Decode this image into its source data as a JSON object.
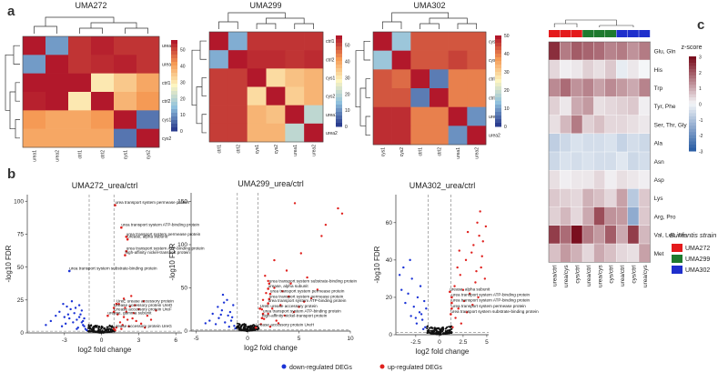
{
  "panel_labels": {
    "a": "a",
    "b": "b",
    "c": "c"
  },
  "colors": {
    "hm_low": "#2b3d8f",
    "hm_mid1": "#8fc0dd",
    "hm_mid2": "#fdf5c0",
    "hm_mid3": "#f59a55",
    "hm_high": "#b2182b",
    "down": "#1b33d6",
    "up": "#e0211e",
    "ns": "#111111",
    "z_low": "#2c5fa5",
    "z_mid": "#f4f6f8",
    "z_high": "#7a0f1f",
    "strain_272": "#e41a1c",
    "strain_299": "#1e7a2e",
    "strain_302": "#1f2fcc"
  },
  "chart_data": [
    {
      "type": "heatmap",
      "title": "UMA272",
      "rows": [
        "urea1",
        "urea2",
        "ctrl1",
        "ctrl2",
        "cys1",
        "cys2"
      ],
      "cols": [
        "urea1",
        "urea2",
        "ctrl1",
        "ctrl2",
        "cys1",
        "cys2"
      ],
      "values": [
        [
          56,
          10,
          53,
          55,
          53,
          53
        ],
        [
          10,
          56,
          53,
          54,
          55,
          53
        ],
        [
          56,
          56,
          56,
          30,
          35,
          40
        ],
        [
          55,
          56,
          30,
          56,
          38,
          42
        ],
        [
          42,
          40,
          40,
          42,
          56,
          6
        ],
        [
          40,
          40,
          40,
          40,
          6,
          56
        ]
      ],
      "colorbar": [
        "50",
        "40",
        "30",
        "20",
        "10",
        "0"
      ],
      "range": [
        0,
        56
      ]
    },
    {
      "type": "heatmap",
      "title": "UMA299",
      "rows": [
        "ctrl1",
        "ctrl2",
        "cys1",
        "cys2",
        "urea1",
        "urea2"
      ],
      "cols": [
        "ctrl1",
        "ctrl2",
        "cys1",
        "cys2",
        "urea1",
        "urea2"
      ],
      "values": [
        [
          56,
          12,
          53,
          53,
          53,
          53
        ],
        [
          12,
          56,
          54,
          54,
          53,
          54
        ],
        [
          52,
          52,
          56,
          32,
          36,
          38
        ],
        [
          52,
          52,
          32,
          56,
          34,
          38
        ],
        [
          52,
          52,
          38,
          36,
          56,
          20
        ],
        [
          52,
          52,
          38,
          38,
          20,
          56
        ]
      ],
      "colorbar": [
        "50",
        "40",
        "30",
        "20",
        "10",
        "0"
      ],
      "range": [
        0,
        56
      ]
    },
    {
      "type": "heatmap",
      "title": "UMA302",
      "rows": [
        "cys1",
        "cys2",
        "ctrl1",
        "ctrl2",
        "urea1",
        "urea2"
      ],
      "cols": [
        "cys1",
        "cys2",
        "ctrl1",
        "ctrl2",
        "urea1",
        "urea2"
      ],
      "values": [
        [
          50,
          14,
          44,
          44,
          44,
          44
        ],
        [
          14,
          50,
          44,
          44,
          46,
          44
        ],
        [
          44,
          42,
          50,
          6,
          40,
          40
        ],
        [
          44,
          44,
          6,
          50,
          40,
          40
        ],
        [
          48,
          48,
          40,
          40,
          50,
          8
        ],
        [
          48,
          48,
          40,
          40,
          8,
          50
        ]
      ],
      "colorbar": [
        "50",
        "40",
        "30",
        "20",
        "10",
        "0"
      ],
      "range": [
        0,
        50
      ]
    },
    {
      "type": "scatter",
      "title": "UMA272_urea/ctrl",
      "xlabel": "log2 fold change",
      "ylabel": "-log10 FDR",
      "xlim": [
        -6,
        6.5
      ],
      "ylim": [
        0,
        105
      ],
      "xticks": [
        -3,
        0,
        3,
        6
      ],
      "yticks": [
        0,
        25,
        50,
        75,
        100
      ],
      "thresholds": {
        "x": [
          -1,
          1
        ],
        "y": 1.3
      },
      "down_points": [
        [
          -1.4,
          5
        ],
        [
          -1.6,
          8
        ],
        [
          -1.8,
          12
        ],
        [
          -2.0,
          10
        ],
        [
          -2.2,
          15
        ],
        [
          -2.5,
          18
        ],
        [
          -1.3,
          3
        ],
        [
          -1.5,
          6
        ],
        [
          -2.8,
          20
        ],
        [
          -3.1,
          22
        ],
        [
          -1.7,
          14
        ],
        [
          -2.3,
          8
        ],
        [
          -1.9,
          4
        ],
        [
          -3.4,
          16
        ],
        [
          -2.6,
          11
        ],
        [
          -2.1,
          19
        ],
        [
          -1.2,
          2
        ],
        [
          -3.7,
          13
        ],
        [
          -1.6,
          17
        ],
        [
          -2.9,
          7
        ],
        [
          -4.1,
          9
        ],
        [
          -1.4,
          11
        ],
        [
          -2.4,
          24
        ],
        [
          -3.2,
          5
        ],
        [
          -1.8,
          21
        ],
        [
          -2.0,
          3
        ],
        [
          -4.5,
          6
        ],
        [
          -1.5,
          9
        ],
        [
          -2.7,
          14
        ],
        [
          -3.0,
          12
        ]
      ],
      "up_points": [
        [
          1.2,
          4
        ],
        [
          1.5,
          8
        ],
        [
          1.8,
          12
        ],
        [
          2.0,
          16
        ],
        [
          2.3,
          20
        ],
        [
          2.6,
          15
        ],
        [
          1.4,
          22
        ],
        [
          3.0,
          18
        ],
        [
          1.7,
          6
        ],
        [
          2.1,
          10
        ],
        [
          3.4,
          24
        ],
        [
          1.3,
          14
        ],
        [
          2.8,
          9
        ],
        [
          1.6,
          3
        ],
        [
          2.4,
          28
        ],
        [
          3.7,
          13
        ],
        [
          1.9,
          19
        ],
        [
          4.0,
          10
        ],
        [
          2.2,
          5
        ],
        [
          3.2,
          7
        ],
        [
          1.1,
          2
        ],
        [
          4.4,
          17
        ],
        [
          2.7,
          21
        ],
        [
          1.8,
          26
        ],
        [
          3.5,
          4
        ],
        [
          2.5,
          11
        ]
      ],
      "labeled_points": [
        {
          "x": 1.1,
          "y": 97,
          "label": "urea transport system permease protein"
        },
        {
          "x": 1.6,
          "y": 80,
          "label": "urea transport system ATP-binding protein"
        },
        {
          "x": 2.0,
          "y": 73,
          "label": "urea transport system permease protein"
        },
        {
          "x": 2.1,
          "y": 71,
          "label": "urease, alpha subunit"
        },
        {
          "x": 2.0,
          "y": 62,
          "label": "urea transport system ATP-binding protein"
        },
        {
          "x": 1.9,
          "y": 59,
          "label": "high-affinity nickel-transport protein"
        },
        {
          "x": -2.6,
          "y": 47,
          "label": "urea transport system substrate-binding protein"
        },
        {
          "x": 1.2,
          "y": 22,
          "label": "UreE urease accessory protein"
        },
        {
          "x": 1.0,
          "y": 19,
          "label": "Urease accessory protein UreD"
        },
        {
          "x": 1.0,
          "y": 16,
          "label": "Urease accessory protein UreF"
        },
        {
          "x": 0.5,
          "y": 13,
          "label": "urease, gamma subunit"
        },
        {
          "x": 1.0,
          "y": 3,
          "label": "urease accessory protein UreG"
        }
      ]
    },
    {
      "type": "scatter",
      "title": "UMA299_urea/ctrl",
      "xlabel": "log2 fold change",
      "ylabel": "-log10 FDR",
      "xlim": [
        -5.5,
        10
      ],
      "ylim": [
        0,
        160
      ],
      "xticks": [
        -5,
        0,
        5,
        10
      ],
      "yticks": [
        0,
        50,
        100,
        150
      ],
      "thresholds": {
        "x": [
          -1,
          1
        ],
        "y": 1.3
      },
      "down_points": [
        [
          -1.3,
          6
        ],
        [
          -1.6,
          12
        ],
        [
          -1.9,
          18
        ],
        [
          -2.2,
          10
        ],
        [
          -2.5,
          24
        ],
        [
          -1.4,
          30
        ],
        [
          -2.8,
          15
        ],
        [
          -3.1,
          8
        ],
        [
          -1.7,
          22
        ],
        [
          -2.0,
          36
        ],
        [
          -3.4,
          20
        ],
        [
          -1.2,
          3
        ],
        [
          -2.4,
          42
        ],
        [
          -2.9,
          28
        ],
        [
          -1.5,
          16
        ],
        [
          -3.7,
          12
        ],
        [
          -1.8,
          5
        ],
        [
          -2.3,
          33
        ],
        [
          -4.1,
          9
        ],
        [
          -2.6,
          19
        ]
      ],
      "up_points": [
        [
          1.3,
          8
        ],
        [
          1.6,
          14
        ],
        [
          2.0,
          20
        ],
        [
          2.4,
          26
        ],
        [
          2.8,
          12
        ],
        [
          3.2,
          30
        ],
        [
          1.5,
          36
        ],
        [
          3.6,
          18
        ],
        [
          4.0,
          40
        ],
        [
          2.2,
          5
        ],
        [
          4.5,
          22
        ],
        [
          1.8,
          44
        ],
        [
          5.0,
          28
        ],
        [
          2.6,
          50
        ],
        [
          3.0,
          9
        ],
        [
          5.5,
          34
        ],
        [
          1.4,
          25
        ],
        [
          6.2,
          38
        ],
        [
          3.4,
          46
        ],
        [
          2.0,
          58
        ],
        [
          4.2,
          55
        ],
        [
          6.8,
          48
        ],
        [
          5.8,
          62
        ],
        [
          3.8,
          70
        ],
        [
          7.2,
          110
        ],
        [
          7.6,
          123
        ],
        [
          8.8,
          142
        ],
        [
          9.2,
          136
        ],
        [
          4.6,
          148
        ],
        [
          2.6,
          82
        ],
        [
          1.7,
          64
        ],
        [
          5.2,
          90
        ]
      ],
      "labeled_points": [
        {
          "x": 2.1,
          "y": 55,
          "label": "urea transport system substrate-binding protein"
        },
        {
          "x": 2.0,
          "y": 49,
          "label": "urease, alpha subunit"
        },
        {
          "x": 2.2,
          "y": 43,
          "label": "urea transport system permease protein"
        },
        {
          "x": 2.1,
          "y": 37,
          "label": "urea transport system permease protein"
        },
        {
          "x": 2.0,
          "y": 32,
          "label": "urea transport system ATP-binding protein"
        },
        {
          "x": 1.2,
          "y": 26,
          "label": "UreE urease accessory protein"
        },
        {
          "x": 1.5,
          "y": 20,
          "label": "urea transport system ATP-binding protein"
        },
        {
          "x": 1.4,
          "y": 15,
          "label": "high-affinity nickel-transport protein"
        },
        {
          "x": 0.8,
          "y": 4,
          "label": "Urease accessory protein UreH"
        }
      ]
    },
    {
      "type": "scatter",
      "title": "UMA302_urea/ctrl",
      "xlabel": "log2 fold change",
      "ylabel": "-log10 FDR",
      "xlim": [
        -4.6,
        5.2
      ],
      "ylim": [
        0,
        75
      ],
      "xticks": [
        -2.5,
        0,
        2.5,
        5
      ],
      "yticks": [
        0,
        20,
        40,
        60
      ],
      "thresholds": {
        "x": [
          -1.2,
          1.2
        ],
        "y": 1.3
      },
      "down_points": [
        [
          -1.5,
          4
        ],
        [
          -1.8,
          8
        ],
        [
          -2.1,
          12
        ],
        [
          -2.4,
          6
        ],
        [
          -2.7,
          15
        ],
        [
          -1.6,
          18
        ],
        [
          -3.0,
          10
        ],
        [
          -3.3,
          22
        ],
        [
          -2.0,
          26
        ],
        [
          -1.4,
          14
        ],
        [
          -2.9,
          30
        ],
        [
          -3.6,
          17
        ],
        [
          -4.0,
          24
        ],
        [
          -2.3,
          20
        ],
        [
          -1.7,
          3
        ],
        [
          -3.8,
          36
        ],
        [
          -4.2,
          32
        ],
        [
          -3.1,
          40
        ],
        [
          -2.5,
          9
        ],
        [
          -1.9,
          11
        ]
      ],
      "up_points": [
        [
          1.4,
          4
        ],
        [
          1.7,
          9
        ],
        [
          2.0,
          14
        ],
        [
          2.3,
          6
        ],
        [
          2.6,
          18
        ],
        [
          2.9,
          12
        ],
        [
          3.2,
          22
        ],
        [
          1.6,
          26
        ],
        [
          3.5,
          16
        ],
        [
          3.8,
          28
        ],
        [
          2.2,
          32
        ],
        [
          4.1,
          20
        ],
        [
          4.4,
          36
        ],
        [
          2.8,
          40
        ],
        [
          3.4,
          44
        ],
        [
          4.6,
          50
        ],
        [
          3.0,
          55
        ],
        [
          4.0,
          60
        ],
        [
          4.3,
          66
        ],
        [
          3.6,
          48
        ],
        [
          4.8,
          30
        ],
        [
          2.5,
          24
        ],
        [
          1.9,
          36
        ],
        [
          4.5,
          42
        ],
        [
          4.9,
          58
        ],
        [
          3.9,
          34
        ],
        [
          2.1,
          45
        ],
        [
          4.2,
          53
        ]
      ],
      "labeled_points": [
        {
          "x": 1.1,
          "y": 23,
          "label": "urease, alpha subunit"
        },
        {
          "x": 1.3,
          "y": 20,
          "label": "urea transport system ATP-binding protein"
        },
        {
          "x": 1.3,
          "y": 17,
          "label": "urea transport system ATP-binding protein"
        },
        {
          "x": 1.3,
          "y": 14,
          "label": "urea transport system permease protein"
        },
        {
          "x": 1.2,
          "y": 11,
          "label": "urea transport system substrate-binding protein"
        }
      ]
    },
    {
      "type": "heatmap",
      "title": "z-score",
      "rows": [
        "Glu, Gln",
        "His",
        "Trp",
        "Tyr, Phe",
        "Ser, Thr, Gly",
        "Ala",
        "Asn",
        "Asp",
        "Lys",
        "Arg, Pro",
        "Val, Leu, Ile",
        "Met"
      ],
      "cols": [
        "urea/ctrl",
        "urea/cys",
        "cys/ctrl",
        "urea/ctrl",
        "urea/cys",
        "cys/ctrl",
        "urea/ctrl",
        "cys/ctrl",
        "urea/cys"
      ],
      "col_strains": [
        "UMA272",
        "UMA272",
        "UMA272",
        "UMA299",
        "UMA299",
        "UMA299",
        "UMA302",
        "UMA302",
        "UMA302"
      ],
      "values": [
        [
          2.6,
          1.6,
          2.0,
          1.9,
          1.8,
          1.5,
          1.6,
          1.3,
          1.6
        ],
        [
          0.4,
          0.1,
          0.2,
          0.5,
          0.3,
          0.6,
          -0.2,
          0.2,
          0.0
        ],
        [
          1.4,
          1.8,
          1.3,
          1.5,
          1.1,
          1.4,
          1.2,
          1.0,
          1.5
        ],
        [
          0.5,
          0.2,
          1.0,
          1.2,
          0.3,
          0.4,
          0.5,
          0.6,
          0.1
        ],
        [
          0.3,
          0.8,
          1.6,
          0.5,
          0.7,
          0.4,
          0.4,
          0.3,
          0.2
        ],
        [
          -0.8,
          -0.6,
          -0.4,
          -0.5,
          -0.5,
          -0.4,
          -0.7,
          -0.5,
          -0.6
        ],
        [
          -0.6,
          -0.4,
          -0.5,
          -0.4,
          -0.5,
          -0.5,
          -0.3,
          -0.6,
          -0.5
        ],
        [
          0.3,
          0.1,
          0.2,
          0.2,
          0.4,
          0.1,
          0.3,
          0.2,
          0.1
        ],
        [
          0.6,
          0.5,
          0.4,
          0.9,
          0.7,
          0.4,
          1.1,
          -0.9,
          0.6
        ],
        [
          0.5,
          0.8,
          0.4,
          1.0,
          2.2,
          1.3,
          1.2,
          -1.5,
          0.6
        ],
        [
          2.4,
          1.8,
          3.0,
          1.6,
          1.2,
          2.0,
          1.0,
          2.4,
          0.8
        ],
        [
          0.7,
          1.2,
          0.9,
          0.4,
          1.0,
          0.7,
          0.4,
          0.3,
          1.1
        ]
      ],
      "colorbar": [
        "3",
        "2",
        "1",
        "0",
        "-1",
        "-2",
        "-3"
      ],
      "range": [
        -3,
        3
      ]
    }
  ],
  "volcano_legend": {
    "down_label": "down-regulated DEGs",
    "up_label": "up-regulated DEGs"
  },
  "strain_legend": {
    "title": "B.infantis strain",
    "items": [
      "UMA272",
      "UMA299",
      "UMA302"
    ]
  }
}
